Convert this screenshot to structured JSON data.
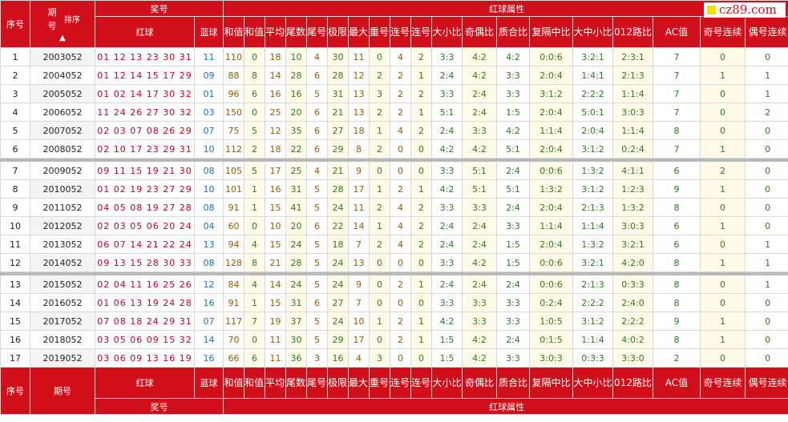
{
  "header": {
    "seq": "序号",
    "issue": "期号",
    "sort": "排序",
    "award": "奖号",
    "red": "红球",
    "blue": "蓝球",
    "red_attr": "红球属性",
    "cols": [
      "和值",
      "和值尾数",
      "平均值",
      "尾数和值",
      "尾号组数",
      "极限间距",
      "最大间距",
      "重号个数",
      "连号个数",
      "连号组数",
      "大小比",
      "奇偶比",
      "质合比",
      "复隔中比",
      "大中小比",
      "012路比",
      "AC值",
      "奇号连续",
      "偶号连续"
    ]
  },
  "logo": "cz89.com",
  "rows": [
    {
      "i": "1",
      "issue": "2003052",
      "red": "01 12 13 23 30 31",
      "blue": "11",
      "v": [
        "110",
        "0",
        "18",
        "10",
        "4",
        "30",
        "11",
        "0",
        "4",
        "2",
        "3:3",
        "4:2",
        "4:2",
        "0:0:6",
        "3:2:1",
        "2:3:1",
        "7",
        "0",
        "0"
      ]
    },
    {
      "i": "2",
      "issue": "2004052",
      "red": "01 12 14 15 17 29",
      "blue": "09",
      "v": [
        "88",
        "8",
        "14",
        "28",
        "6",
        "28",
        "12",
        "2",
        "2",
        "1",
        "2:4",
        "4:2",
        "3:3",
        "2:0:4",
        "1:4:1",
        "2:1:3",
        "7",
        "1",
        "1"
      ]
    },
    {
      "i": "3",
      "issue": "2005052",
      "red": "01 02 14 17 30 32",
      "blue": "01",
      "v": [
        "96",
        "6",
        "16",
        "16",
        "5",
        "31",
        "13",
        "3",
        "2",
        "2",
        "3:3",
        "2:4",
        "3:3",
        "3:1:2",
        "2:2:2",
        "1:1:4",
        "7",
        "0",
        "1"
      ]
    },
    {
      "i": "4",
      "issue": "2006052",
      "red": "11 24 26 27 30 32",
      "blue": "03",
      "v": [
        "150",
        "0",
        "25",
        "20",
        "6",
        "21",
        "13",
        "2",
        "2",
        "1",
        "5:1",
        "2:4",
        "1:5",
        "2:0:4",
        "5:0:1",
        "3:0:3",
        "7",
        "0",
        "2"
      ]
    },
    {
      "i": "5",
      "issue": "2007052",
      "red": "02 03 07 08 26 29",
      "blue": "07",
      "v": [
        "75",
        "5",
        "12",
        "35",
        "6",
        "27",
        "18",
        "1",
        "4",
        "2",
        "2:4",
        "3:3",
        "4:2",
        "1:1:4",
        "2:0:4",
        "1:1:4",
        "8",
        "0",
        "0"
      ]
    },
    {
      "i": "6",
      "issue": "2008052",
      "red": "02 10 17 23 29 31",
      "blue": "10",
      "v": [
        "112",
        "2",
        "18",
        "22",
        "6",
        "29",
        "8",
        "2",
        "0",
        "0",
        "4:2",
        "4:2",
        "5:1",
        "2:0:4",
        "3:1:2",
        "0:2:4",
        "7",
        "1",
        "0"
      ]
    },
    {
      "i": "7",
      "issue": "2009052",
      "red": "09 11 15 19 21 30",
      "blue": "08",
      "v": [
        "105",
        "5",
        "17",
        "25",
        "4",
        "21",
        "9",
        "0",
        "0",
        "0",
        "3:3",
        "5:1",
        "2:4",
        "0:0:6",
        "1:3:2",
        "4:1:1",
        "6",
        "2",
        "0"
      ]
    },
    {
      "i": "8",
      "issue": "2010052",
      "red": "01 02 19 23 27 29",
      "blue": "10",
      "v": [
        "101",
        "1",
        "16",
        "31",
        "5",
        "28",
        "17",
        "1",
        "2",
        "1",
        "4:2",
        "5:1",
        "5:1",
        "1:3:2",
        "3:1:2",
        "1:2:3",
        "9",
        "1",
        "0"
      ]
    },
    {
      "i": "9",
      "issue": "2011052",
      "red": "04 05 08 19 27 28",
      "blue": "08",
      "v": [
        "91",
        "1",
        "15",
        "41",
        "5",
        "24",
        "11",
        "2",
        "4",
        "2",
        "3:3",
        "3:3",
        "2:4",
        "2:0:4",
        "2:1:3",
        "1:3:2",
        "8",
        "0",
        "0"
      ]
    },
    {
      "i": "10",
      "issue": "2012052",
      "red": "02 03 05 06 20 24",
      "blue": "04",
      "v": [
        "60",
        "0",
        "10",
        "20",
        "6",
        "22",
        "14",
        "1",
        "4",
        "2",
        "2:4",
        "2:4",
        "3:3",
        "1:1:4",
        "1:1:4",
        "3:0:3",
        "6",
        "1",
        "0"
      ]
    },
    {
      "i": "11",
      "issue": "2013052",
      "red": "06 07 14 21 22 24",
      "blue": "13",
      "v": [
        "94",
        "4",
        "15",
        "24",
        "5",
        "18",
        "7",
        "2",
        "4",
        "2",
        "2:4",
        "2:4",
        "1:5",
        "2:0:4",
        "1:3:2",
        "3:2:1",
        "6",
        "0",
        "1"
      ]
    },
    {
      "i": "12",
      "issue": "2014052",
      "red": "09 13 15 28 30 33",
      "blue": "08",
      "v": [
        "128",
        "8",
        "21",
        "28",
        "5",
        "24",
        "13",
        "0",
        "0",
        "0",
        "3:3",
        "4:2",
        "1:5",
        "0:0:6",
        "3:2:1",
        "4:2:0",
        "8",
        "1",
        "1"
      ]
    },
    {
      "i": "13",
      "issue": "2015052",
      "red": "02 04 11 16 25 26",
      "blue": "12",
      "v": [
        "84",
        "4",
        "14",
        "24",
        "5",
        "24",
        "9",
        "0",
        "2",
        "1",
        "2:4",
        "2:4",
        "2:4",
        "0:0:6",
        "2:1:3",
        "0:3:3",
        "8",
        "0",
        "1"
      ]
    },
    {
      "i": "14",
      "issue": "2016052",
      "red": "01 06 13 19 24 28",
      "blue": "16",
      "v": [
        "91",
        "1",
        "15",
        "31",
        "6",
        "27",
        "7",
        "0",
        "0",
        "0",
        "3:3",
        "3:3",
        "3:3",
        "0:2:4",
        "2:2:2",
        "2:4:0",
        "8",
        "0",
        "0"
      ]
    },
    {
      "i": "15",
      "issue": "2017052",
      "red": "07 08 18 24 29 31",
      "blue": "07",
      "v": [
        "117",
        "7",
        "19",
        "37",
        "5",
        "24",
        "10",
        "1",
        "2",
        "1",
        "4:2",
        "3:3",
        "3:3",
        "1:0:5",
        "3:1:2",
        "2:2:2",
        "9",
        "1",
        "0"
      ]
    },
    {
      "i": "16",
      "issue": "2018052",
      "red": "03 05 06 09 15 32",
      "blue": "14",
      "v": [
        "70",
        "0",
        "11",
        "30",
        "5",
        "29",
        "17",
        "0",
        "2",
        "1",
        "1:5",
        "4:2",
        "2:4",
        "0:1:5",
        "1:1:4",
        "4:0:2",
        "8",
        "1",
        "0"
      ]
    },
    {
      "i": "17",
      "issue": "2019052",
      "red": "03 06 09 13 16 19",
      "blue": "16",
      "v": [
        "66",
        "6",
        "11",
        "36",
        "3",
        "16",
        "4",
        "3",
        "0",
        "0",
        "1:5",
        "4:2",
        "3:3",
        "3:0:3",
        "0:3:3",
        "3:3:0",
        "2",
        "0",
        "0"
      ]
    }
  ]
}
